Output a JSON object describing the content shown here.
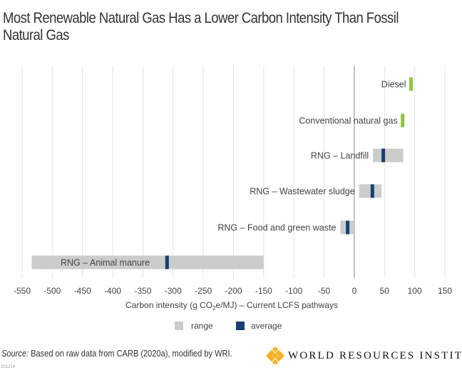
{
  "title": "Most Renewable Natural Gas Has a Lower Carbon Intensity Than Fossil Natural Gas",
  "chart_data": {
    "type": "bar",
    "orientation": "horizontal-range",
    "title": "Most Renewable Natural Gas Has a Lower Carbon Intensity Than Fossil Natural Gas",
    "xlabel_parts": [
      "Carbon intensity (g CO",
      "2",
      "e/MJ) – Current LCFS pathways"
    ],
    "xlim": [
      -550,
      150
    ],
    "xticks": [
      -550,
      -500,
      -450,
      -400,
      -350,
      -300,
      -250,
      -200,
      -150,
      -100,
      -50,
      0,
      50,
      100,
      150
    ],
    "grid": true,
    "legend": {
      "placement": "bottom",
      "entries": [
        {
          "label": "range",
          "color": "#cccccc"
        },
        {
          "label": "average",
          "color": "#173f74"
        }
      ]
    },
    "categories": [
      "Diesel",
      "Conventional natural gas",
      "RNG – Landfill",
      "RNG – Wastewater sludge",
      "RNG – Food and green waste",
      "RNG – Animal manure"
    ],
    "series": [
      {
        "name": "range",
        "values": [
          null,
          null,
          [
            31,
            81
          ],
          [
            8,
            45
          ],
          [
            -23,
            0
          ],
          [
            -534,
            -150
          ]
        ]
      },
      {
        "name": "average",
        "values": [
          null,
          null,
          48,
          30,
          -11,
          -310
        ]
      },
      {
        "name": "fossil",
        "values": [
          94,
          80,
          null,
          null,
          null,
          null
        ],
        "color": "#8dc63f"
      }
    ]
  },
  "colors": {
    "range": "#cccccc",
    "average": "#173f74",
    "fossil": "#8dc63f",
    "logo": "#f4b223"
  },
  "source_label": "Source:",
  "source_text": " Based on raw data from CARB (2020a), modified by WRI.",
  "code": "201214",
  "logo_text": "WORLD RESOURCES INSTITUTE"
}
